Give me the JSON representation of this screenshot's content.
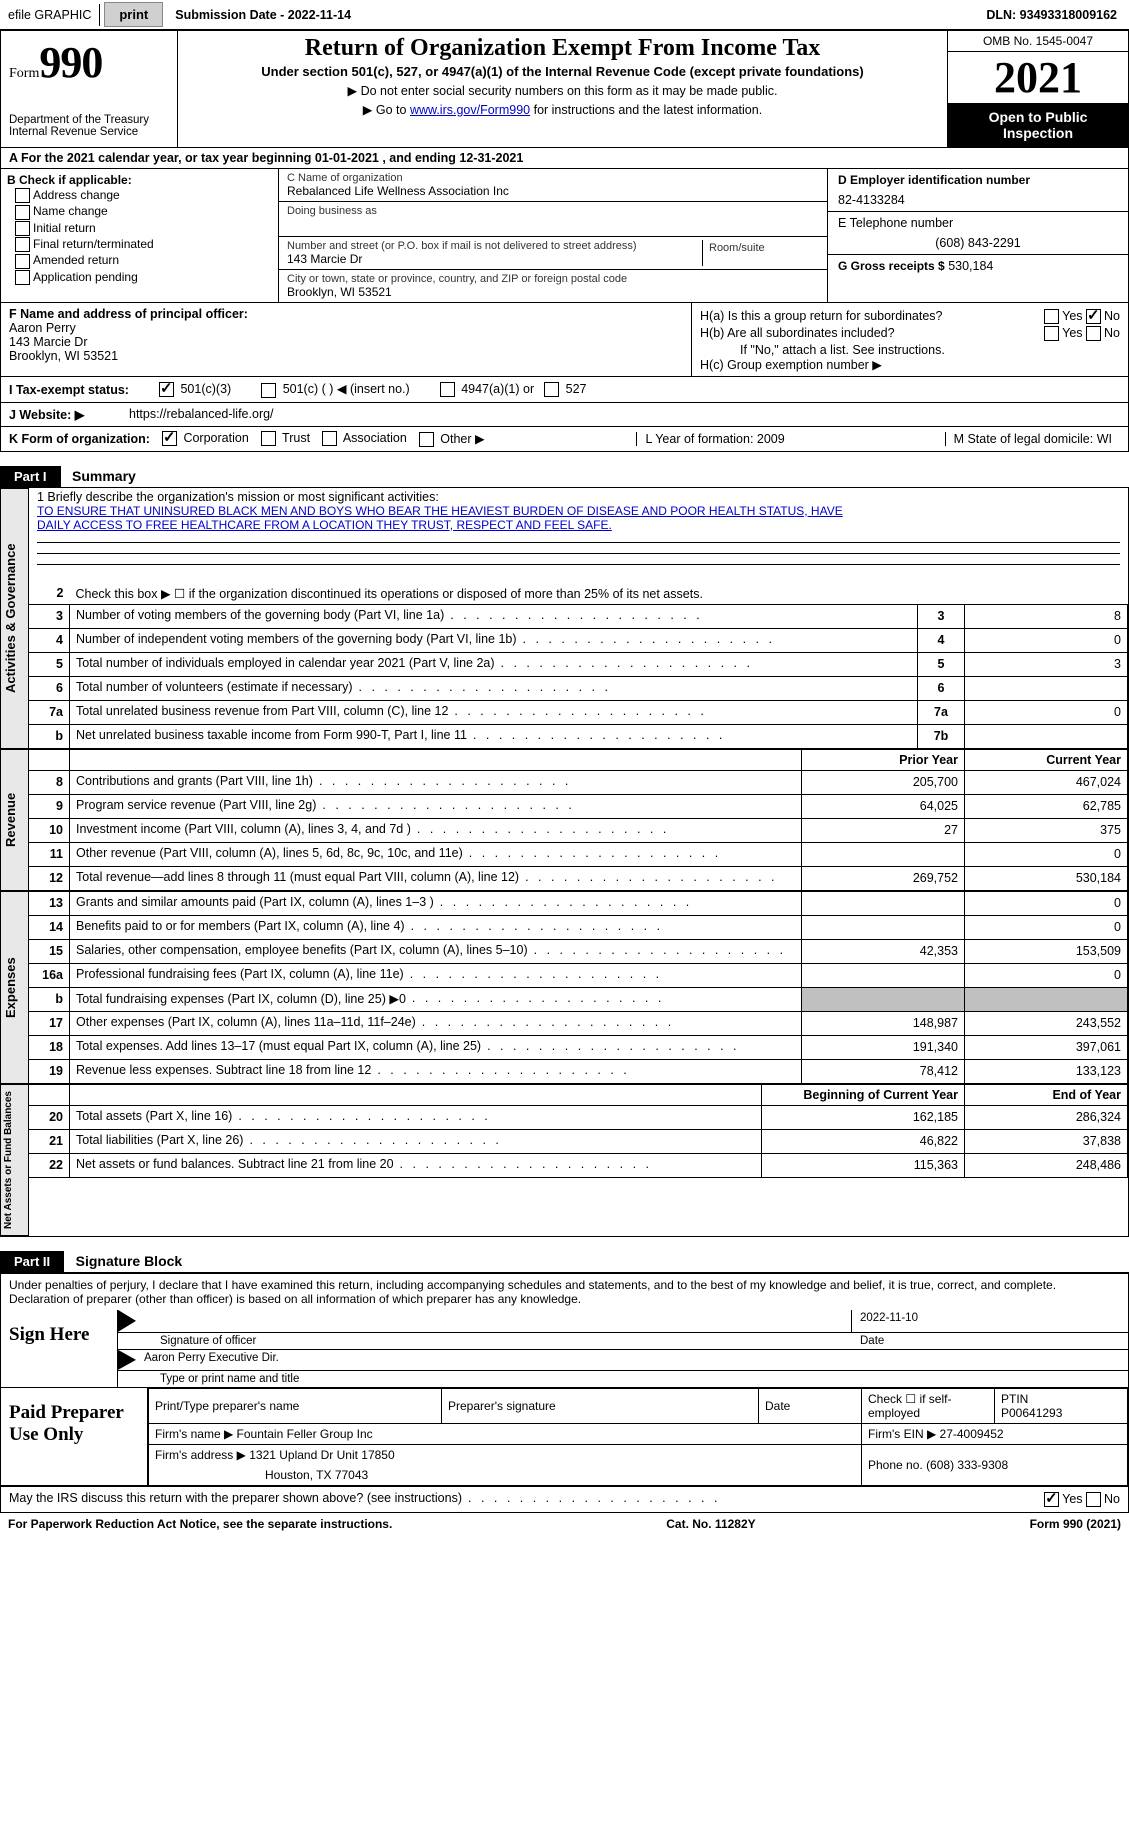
{
  "topbar": {
    "efile": "efile GRAPHIC",
    "print": "print",
    "submission": "Submission Date - 2022-11-14",
    "dln": "DLN: 93493318009162"
  },
  "header": {
    "form_word": "Form",
    "form_no": "990",
    "dept": "Department of the Treasury Internal Revenue Service",
    "title": "Return of Organization Exempt From Income Tax",
    "sub": "Under section 501(c), 527, or 4947(a)(1) of the Internal Revenue Code (except private foundations)",
    "note1": "▶ Do not enter social security numbers on this form as it may be made public.",
    "note2_pre": "▶ Go to ",
    "note2_link": "www.irs.gov/Form990",
    "note2_post": " for instructions and the latest information.",
    "omb": "OMB No. 1545-0047",
    "year": "2021",
    "pub": "Open to Public Inspection"
  },
  "row_a": "A  For the 2021 calendar year, or tax year beginning 01-01-2021    , and ending 12-31-2021",
  "col_b": {
    "hd": "B Check if applicable:",
    "opts": [
      "Address change",
      "Name change",
      "Initial return",
      "Final return/terminated",
      "Amended return",
      "Application pending"
    ]
  },
  "col_c": {
    "name_lbl": "C Name of organization",
    "name": "Rebalanced Life Wellness Association Inc",
    "dba_lbl": "Doing business as",
    "dba": "",
    "addr_lbl": "Number and street (or P.O. box if mail is not delivered to street address)",
    "room_lbl": "Room/suite",
    "addr": "143 Marcie Dr",
    "city_lbl": "City or town, state or province, country, and ZIP or foreign postal code",
    "city": "Brooklyn, WI  53521"
  },
  "col_d": {
    "ein_lbl": "D Employer identification number",
    "ein": "82-4133284",
    "tel_lbl": "E Telephone number",
    "tel": "(608) 843-2291",
    "gross_lbl": "G Gross receipts $",
    "gross": "530,184"
  },
  "col_f": {
    "lbl": "F  Name and address of principal officer:",
    "name": "Aaron Perry",
    "addr1": "143 Marcie Dr",
    "addr2": "Brooklyn, WI  53521"
  },
  "col_h": {
    "a": "H(a)  Is this a group return for subordinates?",
    "b": "H(b)  Are all subordinates included?",
    "bnote": "If \"No,\" attach a list. See instructions.",
    "c": "H(c)  Group exemption number ▶"
  },
  "row_i": {
    "lbl": "I   Tax-exempt status:",
    "o1": "501(c)(3)",
    "o2": "501(c) (  ) ◀ (insert no.)",
    "o3": "4947(a)(1) or",
    "o4": "527"
  },
  "row_j": {
    "lbl": "J   Website: ▶",
    "val": "https://rebalanced-life.org/"
  },
  "row_k": {
    "lbl": "K Form of organization:",
    "o1": "Corporation",
    "o2": "Trust",
    "o3": "Association",
    "o4": "Other ▶",
    "l": "L Year of formation: 2009",
    "m": "M State of legal domicile: WI"
  },
  "part1": {
    "hdr": "Part I",
    "title": "Summary"
  },
  "mission": {
    "lbl": "1   Briefly describe the organization's mission or most significant activities:",
    "l1": "TO ENSURE THAT UNINSURED BLACK MEN AND BOYS WHO BEAR THE HEAVIEST BURDEN OF DISEASE AND POOR HEALTH STATUS, HAVE",
    "l2": "DAILY ACCESS TO FREE HEALTHCARE FROM A LOCATION THEY TRUST, RESPECT AND FEEL SAFE."
  },
  "gov_rows": [
    {
      "n": "2",
      "t": "Check this box ▶ ☐  if the organization discontinued its operations or disposed of more than 25% of its net assets.",
      "b": "",
      "v": ""
    },
    {
      "n": "3",
      "t": "Number of voting members of the governing body (Part VI, line 1a)",
      "b": "3",
      "v": "8"
    },
    {
      "n": "4",
      "t": "Number of independent voting members of the governing body (Part VI, line 1b)",
      "b": "4",
      "v": "0"
    },
    {
      "n": "5",
      "t": "Total number of individuals employed in calendar year 2021 (Part V, line 2a)",
      "b": "5",
      "v": "3"
    },
    {
      "n": "6",
      "t": "Total number of volunteers (estimate if necessary)",
      "b": "6",
      "v": ""
    },
    {
      "n": "7a",
      "t": "Total unrelated business revenue from Part VIII, column (C), line 12",
      "b": "7a",
      "v": "0"
    },
    {
      "n": "b",
      "t": "Net unrelated business taxable income from Form 990-T, Part I, line 11",
      "b": "7b",
      "v": ""
    }
  ],
  "yr_hdr": {
    "py": "Prior Year",
    "cy": "Current Year"
  },
  "rev_rows": [
    {
      "n": "8",
      "t": "Contributions and grants (Part VIII, line 1h)",
      "py": "205,700",
      "cy": "467,024"
    },
    {
      "n": "9",
      "t": "Program service revenue (Part VIII, line 2g)",
      "py": "64,025",
      "cy": "62,785"
    },
    {
      "n": "10",
      "t": "Investment income (Part VIII, column (A), lines 3, 4, and 7d )",
      "py": "27",
      "cy": "375"
    },
    {
      "n": "11",
      "t": "Other revenue (Part VIII, column (A), lines 5, 6d, 8c, 9c, 10c, and 11e)",
      "py": "",
      "cy": "0"
    },
    {
      "n": "12",
      "t": "Total revenue—add lines 8 through 11 (must equal Part VIII, column (A), line 12)",
      "py": "269,752",
      "cy": "530,184"
    }
  ],
  "exp_rows": [
    {
      "n": "13",
      "t": "Grants and similar amounts paid (Part IX, column (A), lines 1–3 )",
      "py": "",
      "cy": "0"
    },
    {
      "n": "14",
      "t": "Benefits paid to or for members (Part IX, column (A), line 4)",
      "py": "",
      "cy": "0"
    },
    {
      "n": "15",
      "t": "Salaries, other compensation, employee benefits (Part IX, column (A), lines 5–10)",
      "py": "42,353",
      "cy": "153,509"
    },
    {
      "n": "16a",
      "t": "Professional fundraising fees (Part IX, column (A), line 11e)",
      "py": "",
      "cy": "0"
    },
    {
      "n": "b",
      "t": "Total fundraising expenses (Part IX, column (D), line 25) ▶0",
      "py": "GRAY",
      "cy": "GRAY"
    },
    {
      "n": "17",
      "t": "Other expenses (Part IX, column (A), lines 11a–11d, 11f–24e)",
      "py": "148,987",
      "cy": "243,552"
    },
    {
      "n": "18",
      "t": "Total expenses. Add lines 13–17 (must equal Part IX, column (A), line 25)",
      "py": "191,340",
      "cy": "397,061"
    },
    {
      "n": "19",
      "t": "Revenue less expenses. Subtract line 18 from line 12",
      "py": "78,412",
      "cy": "133,123"
    }
  ],
  "na_hdr": {
    "py": "Beginning of Current Year",
    "cy": "End of Year"
  },
  "na_rows": [
    {
      "n": "20",
      "t": "Total assets (Part X, line 16)",
      "py": "162,185",
      "cy": "286,324"
    },
    {
      "n": "21",
      "t": "Total liabilities (Part X, line 26)",
      "py": "46,822",
      "cy": "37,838"
    },
    {
      "n": "22",
      "t": "Net assets or fund balances. Subtract line 21 from line 20",
      "py": "115,363",
      "cy": "248,486"
    }
  ],
  "sides": {
    "gov": "Activities & Governance",
    "rev": "Revenue",
    "exp": "Expenses",
    "na": "Net Assets or Fund Balances"
  },
  "part2": {
    "hdr": "Part II",
    "title": "Signature Block"
  },
  "decl": "Under penalties of perjury, I declare that I have examined this return, including accompanying schedules and statements, and to the best of my knowledge and belief, it is true, correct, and complete. Declaration of preparer (other than officer) is based on all information of which preparer has any knowledge.",
  "sign": {
    "here": "Sign Here",
    "sig_lbl": "Signature of officer",
    "date_lbl": "Date",
    "date": "2022-11-10",
    "name": "Aaron Perry  Executive Dir.",
    "name_lbl": "Type or print name and title"
  },
  "paid": {
    "here": "Paid Preparer Use Only",
    "pname_lbl": "Print/Type preparer's name",
    "psig_lbl": "Preparer's signature",
    "pdate_lbl": "Date",
    "chk_lbl": "Check ☐ if self-employed",
    "ptin_lbl": "PTIN",
    "ptin": "P00641293",
    "firm_lbl": "Firm's name     ▶",
    "firm": "Fountain Feller Group Inc",
    "fein_lbl": "Firm's EIN ▶",
    "fein": "27-4009452",
    "faddr_lbl": "Firm's address ▶",
    "faddr1": "1321 Upland Dr Unit 17850",
    "faddr2": "Houston, TX  77043",
    "phone_lbl": "Phone no.",
    "phone": "(608) 333-9308"
  },
  "irs_q": "May the IRS discuss this return with the preparer shown above? (see instructions)",
  "yes": "Yes",
  "no": "No",
  "footer": {
    "l": "For Paperwork Reduction Act Notice, see the separate instructions.",
    "m": "Cat. No. 11282Y",
    "r": "Form 990 (2021)"
  }
}
